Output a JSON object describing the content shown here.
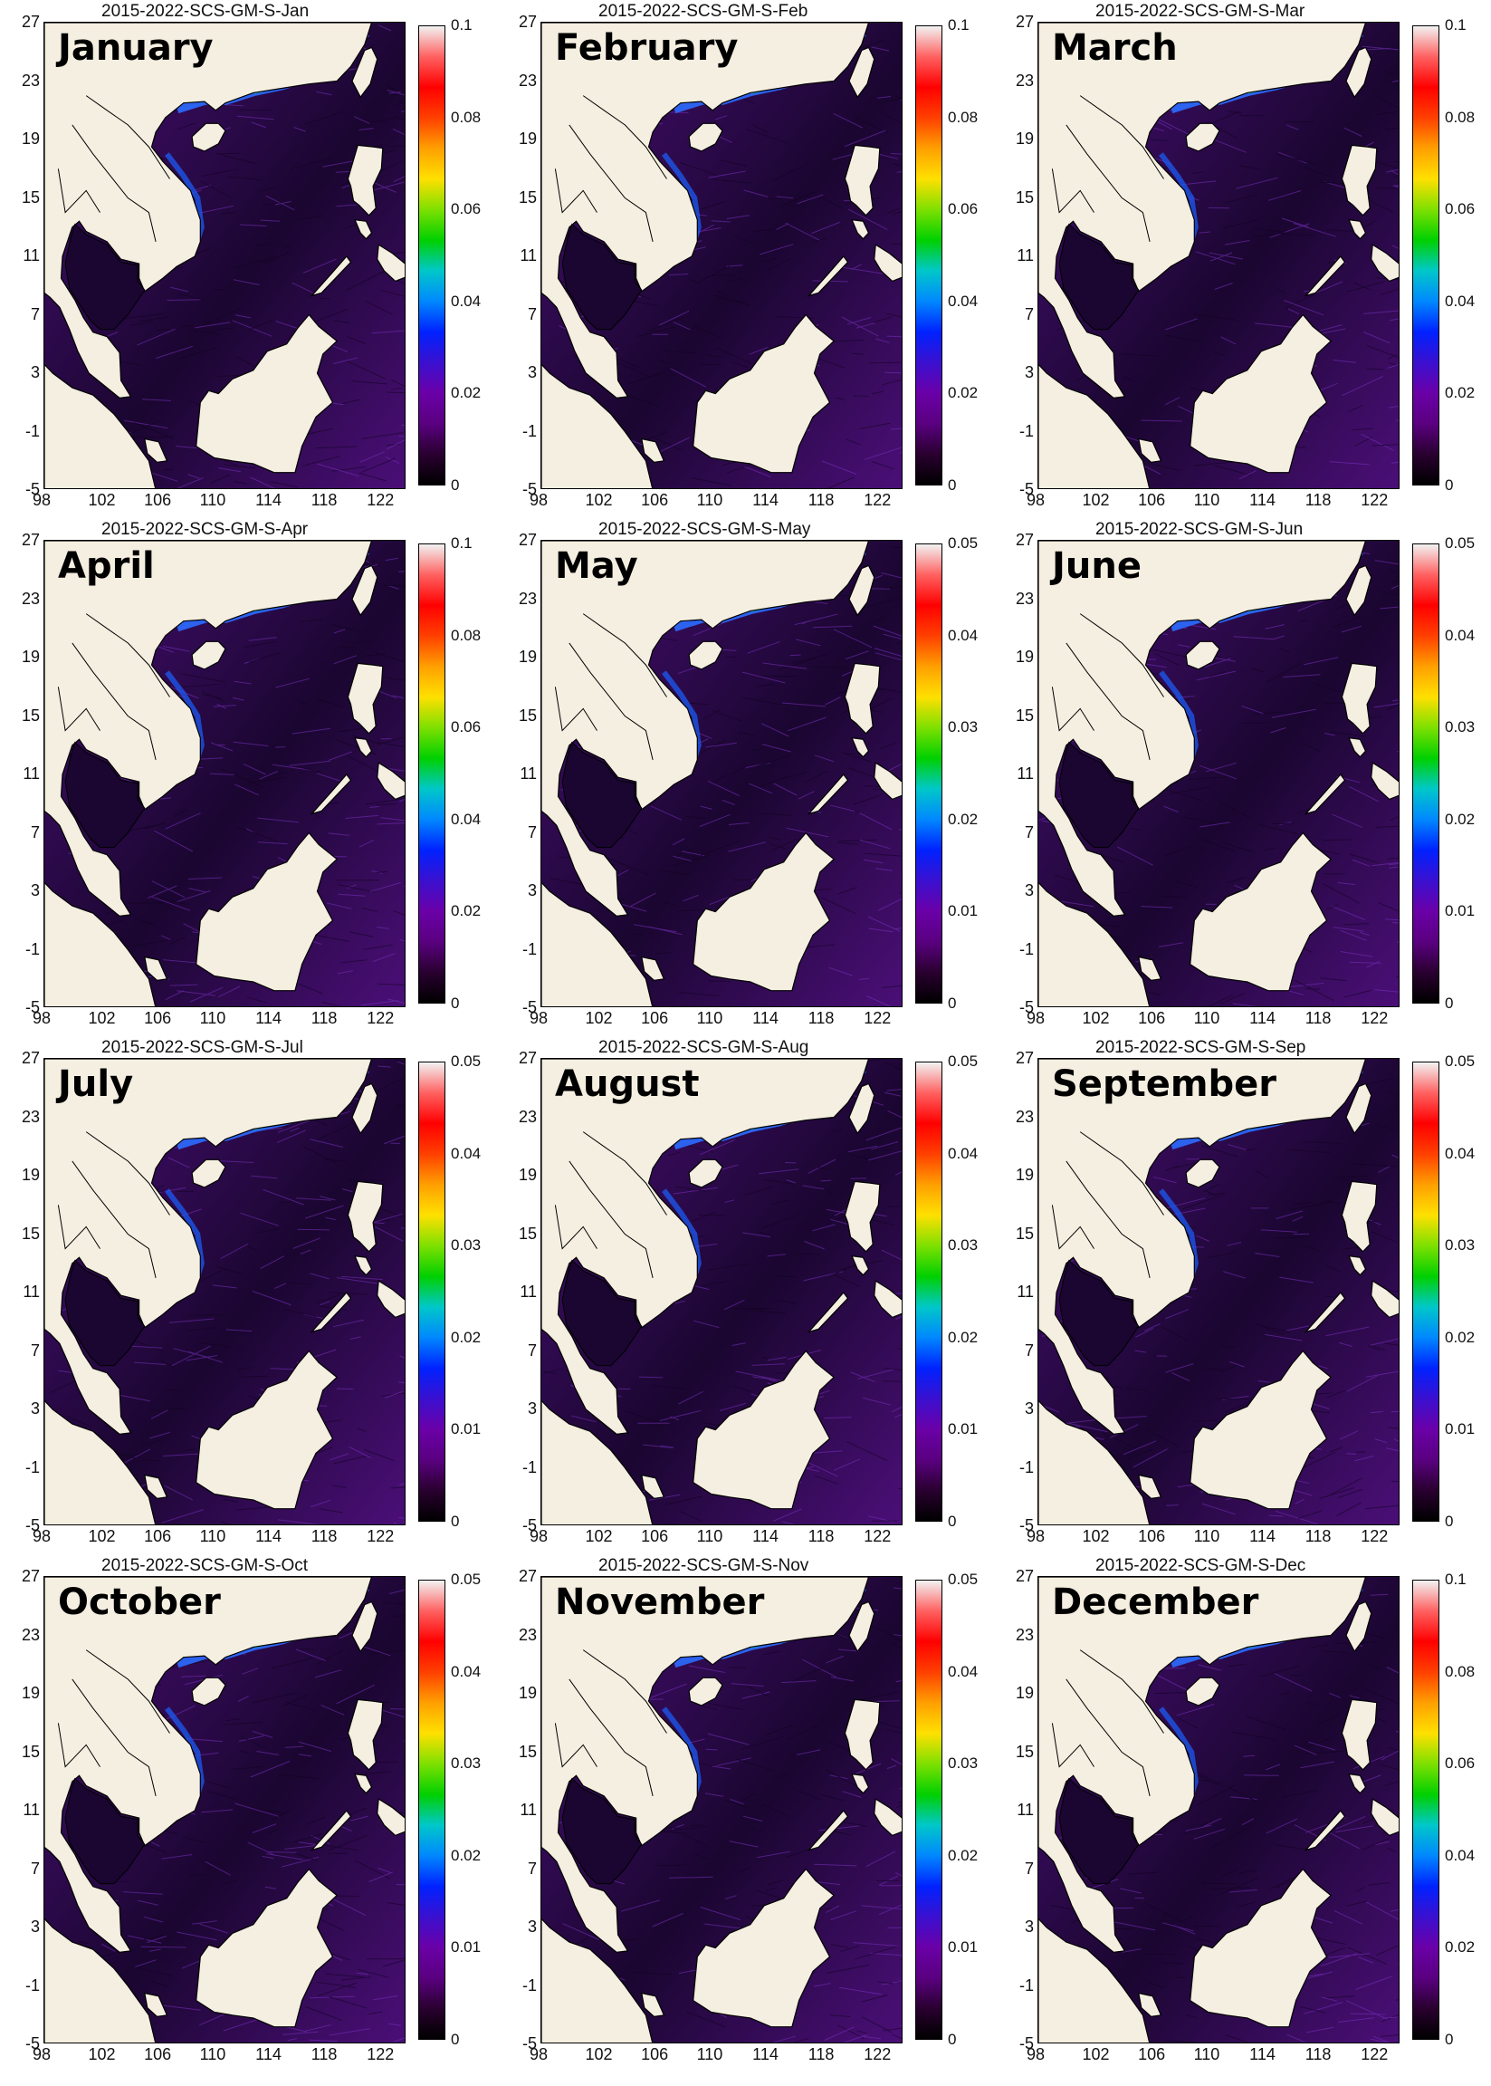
{
  "figure": {
    "panels": [
      {
        "title": "2015-2022-SCS-GM-S-Jan",
        "month": "January",
        "cbar_ticks": [
          "0.1",
          "0.08",
          "0.06",
          "0.04",
          "0.02",
          "0"
        ],
        "vmax": 0.1,
        "intensity": 0.95
      },
      {
        "title": "2015-2022-SCS-GM-S-Feb",
        "month": "February",
        "cbar_ticks": [
          "0.1",
          "0.08",
          "0.06",
          "0.04",
          "0.02",
          "0"
        ],
        "vmax": 0.1,
        "intensity": 0.95
      },
      {
        "title": "2015-2022-SCS-GM-S-Mar",
        "month": "March",
        "cbar_ticks": [
          "0.1",
          "0.08",
          "0.06",
          "0.04",
          "0.02",
          "0"
        ],
        "vmax": 0.1,
        "intensity": 0.9
      },
      {
        "title": "2015-2022-SCS-GM-S-Apr",
        "month": "April",
        "cbar_ticks": [
          "0.1",
          "0.08",
          "0.06",
          "0.04",
          "0.02",
          "0"
        ],
        "vmax": 0.1,
        "intensity": 0.75
      },
      {
        "title": "2015-2022-SCS-GM-S-May",
        "month": "May",
        "cbar_ticks": [
          "0.05",
          "0.04",
          "0.03",
          "0.02",
          "0.01",
          "0"
        ],
        "vmax": 0.05,
        "intensity": 0.95
      },
      {
        "title": "2015-2022-SCS-GM-S-Jun",
        "month": "June",
        "cbar_ticks": [
          "0.05",
          "0.04",
          "0.03",
          "0.02",
          "0.01",
          "0"
        ],
        "vmax": 0.05,
        "intensity": 0.7
      },
      {
        "title": "2015-2022-SCS-GM-S-Jul",
        "month": "July",
        "cbar_ticks": [
          "0.05",
          "0.04",
          "0.03",
          "0.02",
          "0.01",
          "0"
        ],
        "vmax": 0.05,
        "intensity": 0.85
      },
      {
        "title": "2015-2022-SCS-GM-S-Aug",
        "month": "August",
        "cbar_ticks": [
          "0.05",
          "0.04",
          "0.03",
          "0.02",
          "0.01",
          "0"
        ],
        "vmax": 0.05,
        "intensity": 0.6
      },
      {
        "title": "2015-2022-SCS-GM-S-Sep",
        "month": "September",
        "cbar_ticks": [
          "0.05",
          "0.04",
          "0.03",
          "0.02",
          "0.01",
          "0"
        ],
        "vmax": 0.05,
        "intensity": 0.6
      },
      {
        "title": "2015-2022-SCS-GM-S-Oct",
        "month": "October",
        "cbar_ticks": [
          "0.05",
          "0.04",
          "0.03",
          "0.02",
          "0.01",
          "0"
        ],
        "vmax": 0.05,
        "intensity": 0.8
      },
      {
        "title": "2015-2022-SCS-GM-S-Nov",
        "month": "November",
        "cbar_ticks": [
          "0.05",
          "0.04",
          "0.03",
          "0.02",
          "0.01",
          "0"
        ],
        "vmax": 0.05,
        "intensity": 0.95
      },
      {
        "title": "2015-2022-SCS-GM-S-Dec",
        "month": "December",
        "cbar_ticks": [
          "0.1",
          "0.08",
          "0.06",
          "0.04",
          "0.02",
          "0"
        ],
        "vmax": 0.1,
        "intensity": 0.85
      }
    ],
    "lat_ticks": [
      "27",
      "23",
      "19",
      "15",
      "11",
      "7",
      "3",
      "-1",
      "-5"
    ],
    "lon_ticks": [
      "98",
      "102",
      "106",
      "110",
      "114",
      "118",
      "122"
    ],
    "colormap": [
      "#000000",
      "#2a0030",
      "#5a0080",
      "#6a00a8",
      "#3a10d0",
      "#0022ff",
      "#0088ff",
      "#00c8c8",
      "#00d000",
      "#7ee000",
      "#ffe000",
      "#ffa000",
      "#ff4000",
      "#ff0000",
      "#ff6060",
      "#f2f2f2"
    ],
    "colors": {
      "land": "#f5efe1",
      "ocean_base": "#4b0f78",
      "ocean_dark": "#1a0630",
      "coast": "#000000"
    }
  }
}
